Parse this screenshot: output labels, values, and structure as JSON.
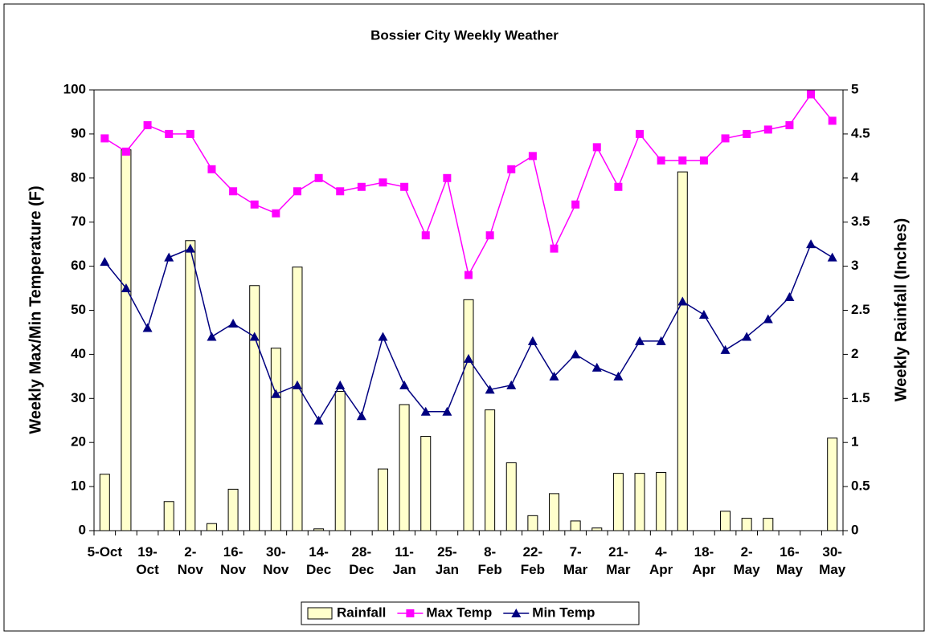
{
  "chart_data": {
    "type": "bar-line",
    "title": "Bossier City Weekly Weather",
    "ylabel": "Weekly Max/Min Temperature (F)",
    "y2label": "Weekly Rainfall (Inches)",
    "categories": [
      "5-Oct",
      null,
      "19-Oct",
      null,
      "2-Nov",
      null,
      "16-Nov",
      null,
      "30-Nov",
      null,
      "14-Dec",
      null,
      "28-Dec",
      null,
      "11-Jan",
      null,
      "25-Jan",
      null,
      "8-Feb",
      null,
      "22-Feb",
      null,
      "7-Mar",
      null,
      "21-Mar",
      null,
      "4-Apr",
      null,
      "18-Apr",
      null,
      "2-May",
      null,
      "16-May",
      null,
      "30-May"
    ],
    "series": [
      {
        "name": "Rainfall",
        "type": "bar",
        "axis": "y2",
        "color": "#ffffcc",
        "values": [
          0.64,
          4.32,
          0,
          0.33,
          3.29,
          0.08,
          0.47,
          2.78,
          2.07,
          2.99,
          0.02,
          1.58,
          0,
          0.7,
          1.43,
          1.07,
          0,
          2.62,
          1.37,
          0.77,
          0.17,
          0.42,
          0.11,
          0.03,
          0.65,
          0.65,
          0.66,
          4.07,
          0,
          0.22,
          0.14,
          0.14,
          0,
          0,
          1.05
        ]
      },
      {
        "name": "Max Temp",
        "type": "line",
        "marker": "square",
        "color": "#ff00ff",
        "values": [
          89,
          86,
          92,
          90,
          90,
          82,
          77,
          74,
          72,
          77,
          80,
          77,
          78,
          79,
          78,
          67,
          80,
          58,
          67,
          82,
          85,
          64,
          74,
          87,
          78,
          90,
          84,
          84,
          84,
          89,
          90,
          91,
          92,
          99,
          93
        ]
      },
      {
        "name": "Min Temp",
        "type": "line",
        "marker": "triangle",
        "color": "#000080",
        "values": [
          61,
          55,
          46,
          62,
          64,
          44,
          47,
          44,
          31,
          33,
          25,
          33,
          26,
          44,
          33,
          27,
          27,
          39,
          32,
          33,
          43,
          35,
          40,
          37,
          35,
          43,
          43,
          52,
          49,
          41,
          44,
          48,
          53,
          65,
          62
        ]
      }
    ],
    "ylim": [
      0,
      100
    ],
    "yticks": [
      0,
      10,
      20,
      30,
      40,
      50,
      60,
      70,
      80,
      90,
      100
    ],
    "y2lim": [
      0,
      5
    ],
    "y2ticks": [
      0,
      0.5,
      1,
      1.5,
      2,
      2.5,
      3,
      3.5,
      4,
      4.5,
      5
    ],
    "legend": "bottom"
  }
}
